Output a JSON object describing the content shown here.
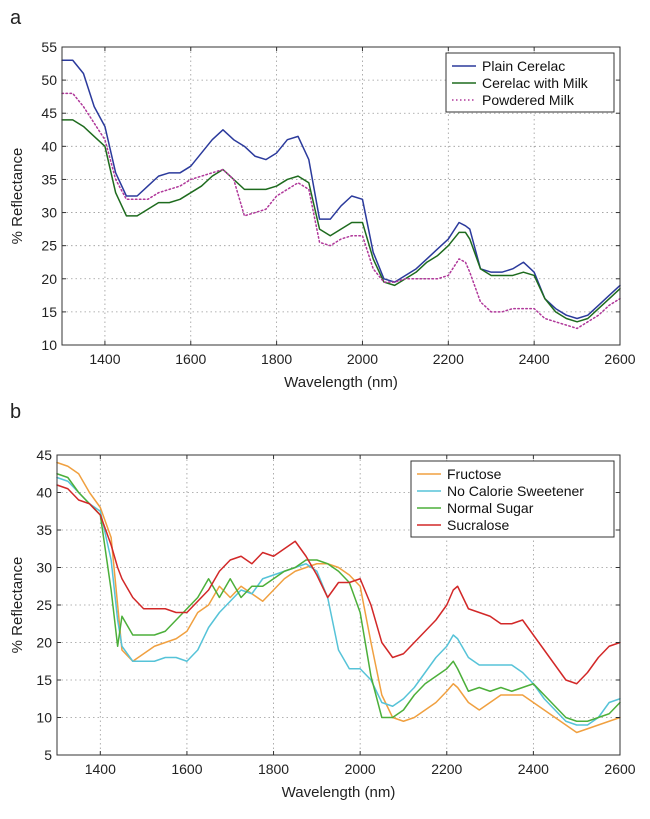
{
  "chart_data": [
    {
      "panel": "a",
      "type": "line",
      "title": "",
      "xlabel": "Wavelength (nm)",
      "ylabel": "% Reflectance",
      "xlim": [
        1300,
        2600
      ],
      "ylim": [
        10,
        55
      ],
      "xticks": [
        1400,
        1600,
        1800,
        2000,
        2200,
        2400,
        2600
      ],
      "yticks": [
        10,
        15,
        20,
        25,
        30,
        35,
        40,
        45,
        50,
        55
      ],
      "grid": true,
      "legend_position": "top-right",
      "series": [
        {
          "name": "Plain Cerelac",
          "color": "#2b3a9c",
          "style": "solid",
          "x": [
            1300,
            1325,
            1350,
            1375,
            1400,
            1425,
            1450,
            1475,
            1500,
            1525,
            1550,
            1575,
            1600,
            1625,
            1650,
            1675,
            1700,
            1725,
            1750,
            1775,
            1800,
            1825,
            1850,
            1875,
            1900,
            1925,
            1950,
            1975,
            2000,
            2025,
            2050,
            2075,
            2100,
            2125,
            2150,
            2175,
            2200,
            2225,
            2240,
            2250,
            2275,
            2300,
            2325,
            2350,
            2375,
            2400,
            2425,
            2450,
            2475,
            2500,
            2525,
            2550,
            2575,
            2600
          ],
          "y": [
            53,
            53,
            51,
            46,
            43,
            36,
            32.5,
            32.5,
            34,
            35.5,
            36,
            36,
            37,
            39,
            41,
            42.5,
            41,
            40,
            38.5,
            38,
            39,
            41,
            41.5,
            38,
            29,
            29,
            31,
            32.5,
            32,
            24,
            20,
            19.5,
            20.5,
            21.5,
            23,
            24.5,
            26,
            28.5,
            28,
            27.5,
            21.5,
            21,
            21,
            21.5,
            22.5,
            21,
            17,
            15.5,
            14.5,
            14,
            14.5,
            16,
            17.5,
            19
          ]
        },
        {
          "name": "Cerelac with Milk",
          "color": "#1e6b1e",
          "style": "solid",
          "x": [
            1300,
            1325,
            1350,
            1375,
            1400,
            1425,
            1450,
            1475,
            1500,
            1525,
            1550,
            1575,
            1600,
            1625,
            1650,
            1675,
            1700,
            1725,
            1750,
            1775,
            1800,
            1825,
            1850,
            1875,
            1900,
            1925,
            1950,
            1975,
            2000,
            2025,
            2050,
            2075,
            2100,
            2125,
            2150,
            2175,
            2200,
            2225,
            2240,
            2250,
            2275,
            2300,
            2325,
            2350,
            2375,
            2400,
            2425,
            2450,
            2475,
            2500,
            2525,
            2550,
            2575,
            2600
          ],
          "y": [
            44,
            44,
            43,
            41.5,
            40,
            33,
            29.5,
            29.5,
            30.5,
            31.5,
            31.5,
            32,
            33,
            34,
            35.5,
            36.5,
            35,
            33.5,
            33.5,
            33.5,
            34,
            35,
            35.5,
            34.5,
            27.5,
            26.5,
            27.5,
            28.5,
            28.5,
            23,
            19.5,
            19,
            20,
            21,
            22.5,
            23.5,
            25,
            27,
            27,
            26,
            21.5,
            20.5,
            20.5,
            20.5,
            21,
            20.5,
            17,
            15,
            14,
            13.5,
            14,
            15.5,
            17,
            18.5
          ]
        },
        {
          "name": "Powdered Milk",
          "color": "#b0389a",
          "style": "dotted",
          "x": [
            1300,
            1325,
            1350,
            1375,
            1400,
            1425,
            1450,
            1475,
            1500,
            1525,
            1550,
            1575,
            1600,
            1625,
            1650,
            1675,
            1700,
            1725,
            1750,
            1775,
            1800,
            1825,
            1850,
            1875,
            1900,
            1925,
            1950,
            1975,
            2000,
            2025,
            2050,
            2075,
            2100,
            2125,
            2150,
            2175,
            2200,
            2225,
            2240,
            2250,
            2275,
            2300,
            2325,
            2350,
            2375,
            2400,
            2425,
            2450,
            2475,
            2500,
            2525,
            2550,
            2575,
            2600
          ],
          "y": [
            48,
            48,
            46,
            43.5,
            41,
            35,
            32,
            32,
            32,
            33,
            33.5,
            34,
            35,
            35.5,
            36,
            36.5,
            35,
            29.5,
            30,
            30.5,
            32.5,
            33.5,
            34.5,
            33.5,
            25.5,
            25,
            26,
            26.5,
            26.5,
            21.5,
            19.5,
            19.5,
            20,
            20,
            20,
            20,
            20.5,
            23,
            22.5,
            21,
            16.5,
            15,
            15,
            15.5,
            15.5,
            15.5,
            14,
            13.5,
            13,
            12.5,
            13.5,
            14.5,
            16,
            17
          ]
        }
      ]
    },
    {
      "panel": "b",
      "type": "line",
      "title": "",
      "xlabel": "Wavelength (nm)",
      "ylabel": "% Reflectance",
      "xlim": [
        1300,
        2600
      ],
      "ylim": [
        5,
        45
      ],
      "xticks": [
        1400,
        1600,
        1800,
        2000,
        2200,
        2400,
        2600
      ],
      "yticks": [
        5,
        10,
        15,
        20,
        25,
        30,
        35,
        40,
        45
      ],
      "grid": true,
      "legend_position": "top-right",
      "series": [
        {
          "name": "Fructose",
          "color": "#f0a040",
          "style": "solid",
          "x": [
            1300,
            1325,
            1350,
            1375,
            1400,
            1425,
            1440,
            1450,
            1475,
            1500,
            1525,
            1550,
            1575,
            1600,
            1625,
            1650,
            1675,
            1700,
            1725,
            1750,
            1775,
            1800,
            1825,
            1850,
            1875,
            1900,
            1925,
            1950,
            1975,
            2000,
            2025,
            2050,
            2075,
            2100,
            2125,
            2150,
            2175,
            2200,
            2215,
            2225,
            2250,
            2275,
            2300,
            2325,
            2350,
            2375,
            2400,
            2425,
            2450,
            2475,
            2500,
            2525,
            2550,
            2575,
            2600
          ],
          "y": [
            44,
            43.5,
            42.5,
            40,
            38,
            34,
            25,
            19,
            17.5,
            18.5,
            19.5,
            20,
            20.5,
            21.5,
            24,
            25,
            27.5,
            26,
            27.5,
            26.5,
            25.5,
            27,
            28.5,
            29.5,
            30,
            30.5,
            30.5,
            30,
            29,
            27.5,
            20,
            13,
            10,
            9.5,
            10,
            11,
            12,
            13.5,
            14.5,
            14,
            12,
            11,
            12,
            13,
            13,
            13,
            12,
            11,
            10,
            9,
            8,
            8.5,
            9,
            9.5,
            10
          ]
        },
        {
          "name": "No Calorie Sweetener",
          "color": "#56c3d8",
          "style": "solid",
          "x": [
            1300,
            1325,
            1350,
            1375,
            1400,
            1425,
            1440,
            1450,
            1475,
            1500,
            1525,
            1550,
            1575,
            1600,
            1625,
            1650,
            1675,
            1700,
            1725,
            1750,
            1775,
            1800,
            1825,
            1850,
            1875,
            1900,
            1925,
            1950,
            1975,
            2000,
            2025,
            2050,
            2075,
            2100,
            2125,
            2150,
            2175,
            2200,
            2215,
            2225,
            2250,
            2275,
            2300,
            2325,
            2350,
            2375,
            2400,
            2425,
            2450,
            2475,
            2500,
            2525,
            2550,
            2575,
            2600
          ],
          "y": [
            42,
            41.5,
            40,
            38.5,
            37.5,
            31,
            23,
            19.5,
            17.5,
            17.5,
            17.5,
            18,
            18,
            17.5,
            19,
            22,
            24,
            25.5,
            27,
            26.5,
            28.5,
            29,
            29.5,
            30,
            30.5,
            29.5,
            26,
            19,
            16.5,
            16.5,
            15,
            12,
            11.5,
            12.5,
            14,
            16,
            18,
            19.5,
            21,
            20.5,
            18,
            17,
            17,
            17,
            17,
            16,
            14.5,
            12.5,
            11,
            9.5,
            9,
            9,
            10,
            12,
            12.5
          ]
        },
        {
          "name": "Normal Sugar",
          "color": "#4caf3a",
          "style": "solid",
          "x": [
            1300,
            1325,
            1350,
            1375,
            1400,
            1425,
            1440,
            1450,
            1475,
            1500,
            1525,
            1550,
            1575,
            1600,
            1625,
            1650,
            1675,
            1700,
            1725,
            1750,
            1775,
            1800,
            1825,
            1850,
            1875,
            1900,
            1925,
            1950,
            1975,
            2000,
            2025,
            2050,
            2075,
            2100,
            2125,
            2150,
            2175,
            2200,
            2215,
            2225,
            2250,
            2275,
            2300,
            2325,
            2350,
            2375,
            2400,
            2425,
            2450,
            2475,
            2500,
            2525,
            2550,
            2575,
            2600
          ],
          "y": [
            42.5,
            42,
            40,
            38.5,
            37,
            27,
            19.5,
            23.5,
            21,
            21,
            21,
            21.5,
            23,
            24.5,
            26,
            28.5,
            26,
            28.5,
            26,
            27.5,
            27.5,
            28.5,
            29.5,
            30,
            31,
            31,
            30.5,
            29.5,
            28,
            24,
            15.5,
            10,
            10,
            11,
            13,
            14.5,
            15.5,
            16.5,
            17.5,
            16.5,
            13.5,
            14,
            13.5,
            14,
            13.5,
            14,
            14.5,
            13,
            11.5,
            10,
            9.5,
            9.5,
            10,
            10.5,
            12
          ]
        },
        {
          "name": "Sucralose",
          "color": "#d22828",
          "style": "solid",
          "x": [
            1300,
            1325,
            1350,
            1375,
            1400,
            1425,
            1440,
            1450,
            1475,
            1500,
            1525,
            1550,
            1575,
            1600,
            1625,
            1650,
            1675,
            1700,
            1725,
            1750,
            1775,
            1800,
            1825,
            1850,
            1875,
            1900,
            1925,
            1950,
            1975,
            2000,
            2025,
            2050,
            2075,
            2100,
            2125,
            2150,
            2175,
            2200,
            2215,
            2225,
            2250,
            2275,
            2300,
            2325,
            2350,
            2375,
            2400,
            2425,
            2450,
            2475,
            2500,
            2525,
            2550,
            2575,
            2600
          ],
          "y": [
            41,
            40.5,
            39,
            38.5,
            37,
            33,
            30,
            28.5,
            26,
            24.5,
            24.5,
            24.5,
            24,
            24,
            25.5,
            27,
            29.5,
            31,
            31.5,
            30.5,
            32,
            31.5,
            32.5,
            33.5,
            31.5,
            29,
            26,
            28,
            28,
            28.5,
            25,
            20,
            18,
            18.5,
            20,
            21.5,
            23,
            25,
            27,
            27.5,
            24.5,
            24,
            23.5,
            22.5,
            22.5,
            23,
            21,
            19,
            17,
            15,
            14.5,
            16,
            18,
            19.5,
            20
          ]
        }
      ]
    }
  ]
}
